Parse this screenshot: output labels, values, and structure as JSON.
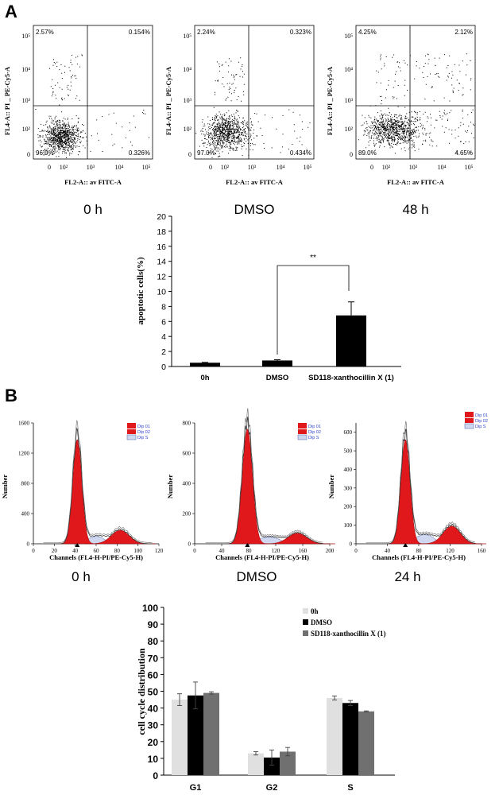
{
  "panel_labels": {
    "a": "A",
    "b": "B"
  },
  "flow_scatter": [
    {
      "time_label": "0 h",
      "x_axis": "FL2-A:: av FITC-A",
      "y_axis": "FL4-A:: PI _ PE-Cy5-A",
      "quadrants": {
        "ul": "2.57%",
        "ur": "0.154%",
        "ll": "96.9%",
        "lr": "0.326%"
      }
    },
    {
      "time_label": "DMSO",
      "x_axis": "FL2-A:: av FITC-A",
      "y_axis": "FL4-A:: PI _ PE-Cy5-A",
      "quadrants": {
        "ul": "2.24%",
        "ur": "0.323%",
        "ll": "97.0%",
        "lr": "0.434%"
      }
    },
    {
      "time_label": "48 h",
      "x_axis": "FL2-A:: av FITC-A",
      "y_axis": "FL4-A:: PI _ PE-Cy5-A",
      "quadrants": {
        "ul": "4.25%",
        "ur": "2.12%",
        "ll": "89.0%",
        "lr": "4.65%"
      }
    }
  ],
  "flow_axis_ticks": {
    "y": [
      "10⁵",
      "10⁴",
      "10³",
      "10²",
      "0"
    ],
    "x": [
      "0",
      "10²",
      "10³",
      "10⁴",
      "10⁵"
    ]
  },
  "cell_cycle": [
    {
      "time_label": "0 h",
      "x_axis": "Channels (FL4-H-PI/PE-Cy5-H)",
      "y_axis": "Number",
      "y_ticks": [
        "0",
        "400",
        "800",
        "1200",
        "1600"
      ],
      "x_ticks": [
        "0",
        "20",
        "40",
        "60",
        "80",
        "100",
        "120"
      ]
    },
    {
      "time_label": "DMSO",
      "x_axis": "Channels (FL4-H-PI/PE-Cy5-H)",
      "y_axis": "Number",
      "y_ticks": [
        "0",
        "200",
        "400",
        "600",
        "800"
      ],
      "x_ticks": [
        "0",
        "40",
        "80",
        "120",
        "160",
        "200"
      ]
    },
    {
      "time_label": "24 h",
      "x_axis": "Channels (FL4-H-PI/PE-Cy5-H)",
      "y_axis": "Number",
      "y_ticks": [
        "0",
        "100",
        "200",
        "300",
        "400",
        "500",
        "600"
      ],
      "x_ticks": [
        "0",
        "40",
        "80",
        "120",
        "160"
      ]
    }
  ],
  "histogram_legend": [
    "Dip 01",
    "Dip 02",
    "Dip S"
  ],
  "chart_data": [
    {
      "type": "bar",
      "title": "",
      "ylabel": "apoptotic cells(%)",
      "xlabel": "",
      "categories": [
        "0h",
        "DMSO",
        "SD118-xanthocillin X (1)"
      ],
      "values": [
        0.5,
        0.8,
        6.8
      ],
      "errors": [
        0.05,
        0.1,
        1.8
      ],
      "ylim": [
        0,
        20
      ],
      "yticks": [
        0,
        2,
        4,
        6,
        8,
        10,
        12,
        14,
        16,
        18,
        20
      ],
      "significance": "**",
      "color": "#000000"
    },
    {
      "type": "bar",
      "title": "",
      "ylabel": "cell cycle distribution",
      "xlabel": "",
      "categories": [
        "G1",
        "G2",
        "S"
      ],
      "series": [
        {
          "name": "0h",
          "values": [
            45,
            13,
            46
          ],
          "errors": [
            3.5,
            1.0,
            1.2
          ],
          "color": "#e0e0e0"
        },
        {
          "name": "DMSO",
          "values": [
            47.5,
            10.5,
            43
          ],
          "errors": [
            8.0,
            4.5,
            1.5
          ],
          "color": "#000000"
        },
        {
          "name": "SD118-xanthocillin X (1)",
          "values": [
            49,
            14,
            38
          ],
          "errors": [
            0.7,
            2.5,
            0.3
          ],
          "color": "#707070"
        }
      ],
      "ylim": [
        0,
        100
      ],
      "yticks": [
        0,
        10,
        20,
        30,
        40,
        50,
        60,
        70,
        80,
        90,
        100
      ],
      "legend": "top-right"
    }
  ]
}
